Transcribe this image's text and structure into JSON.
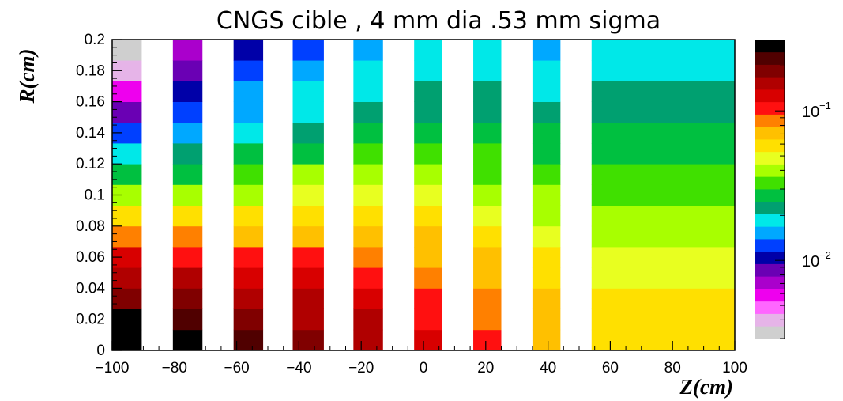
{
  "chart_data": {
    "type": "heatmap",
    "title": "CNGS cible , 4 mm dia .53 mm sigma",
    "xlabel": "Z(cm)",
    "ylabel": "R(cm)",
    "xlim": [
      -100,
      100
    ],
    "ylim": [
      0,
      0.2
    ],
    "x_ticks": [
      "−100",
      "−80",
      "−60",
      "−40",
      "−20",
      "0",
      "20",
      "40",
      "60",
      "80",
      "100"
    ],
    "y_ticks": [
      "0",
      "0.02",
      "0.04",
      "0.06",
      "0.08",
      "0.1",
      "0.12",
      "0.14",
      "0.16",
      "0.18",
      "0.2"
    ],
    "colorbar": {
      "scale": "log",
      "range": [
        0.003,
        0.3
      ],
      "tick_labels": [
        {
          "value": 0.1,
          "base": "10",
          "exponent": "−1"
        },
        {
          "value": 0.01,
          "base": "10",
          "exponent": "−2"
        }
      ],
      "colors": [
        "#cfcfcf",
        "#e6b4e8",
        "#ff66ff",
        "#ee00ee",
        "#aa00cc",
        "#6a00b4",
        "#0000a8",
        "#0040ff",
        "#00a8ff",
        "#00e8e8",
        "#00a070",
        "#00c040",
        "#40e000",
        "#a8ff00",
        "#e8ff20",
        "#ffe000",
        "#ffc000",
        "#ff8000",
        "#ff1010",
        "#d80000",
        "#b00000",
        "#800000",
        "#500000",
        "#000000"
      ]
    },
    "segments": [
      {
        "z_start": -100,
        "z_end": -90.5,
        "r_values": [
          0.3,
          0.25,
          0.2,
          0.16,
          0.12,
          0.08,
          0.055,
          0.04,
          0.03,
          0.02,
          0.012,
          0.008,
          0.006,
          0.004,
          0.003
        ]
      },
      {
        "z_start": -80.5,
        "z_end": -71,
        "r_values": [
          0.28,
          0.23,
          0.19,
          0.15,
          0.11,
          0.08,
          0.055,
          0.04,
          0.03,
          0.022,
          0.016,
          0.012,
          0.01,
          0.008,
          0.007
        ]
      },
      {
        "z_start": -61,
        "z_end": -51.5,
        "r_values": [
          0.22,
          0.19,
          0.16,
          0.13,
          0.1,
          0.075,
          0.055,
          0.042,
          0.033,
          0.026,
          0.02,
          0.016,
          0.014,
          0.012,
          0.011
        ]
      },
      {
        "z_start": -42,
        "z_end": -32,
        "r_values": [
          0.19,
          0.16,
          0.14,
          0.12,
          0.095,
          0.075,
          0.058,
          0.046,
          0.037,
          0.03,
          0.024,
          0.02,
          0.017,
          0.015,
          0.013
        ]
      },
      {
        "z_start": -22.5,
        "z_end": -13,
        "r_values": [
          0.16,
          0.14,
          0.12,
          0.105,
          0.09,
          0.072,
          0.058,
          0.047,
          0.039,
          0.032,
          0.026,
          0.022,
          0.019,
          0.017,
          0.015
        ]
      },
      {
        "z_start": -3,
        "z_end": 6,
        "r_values": [
          0.12,
          0.11,
          0.1,
          0.09,
          0.078,
          0.066,
          0.055,
          0.046,
          0.039,
          0.033,
          0.028,
          0.024,
          0.021,
          0.019,
          0.017
        ]
      },
      {
        "z_start": 16,
        "z_end": 25,
        "r_values": [
          0.1,
          0.092,
          0.085,
          0.076,
          0.066,
          0.057,
          0.049,
          0.042,
          0.036,
          0.031,
          0.027,
          0.023,
          0.021,
          0.019,
          0.017
        ]
      },
      {
        "z_start": 35,
        "z_end": 44,
        "r_values": [
          0.075,
          0.072,
          0.068,
          0.062,
          0.056,
          0.05,
          0.044,
          0.039,
          0.034,
          0.03,
          0.026,
          0.023,
          0.02,
          0.018,
          0.016
        ]
      },
      {
        "z_start": 54,
        "z_end": 100,
        "r_values": [
          0.06,
          0.058,
          0.055,
          0.052,
          0.048,
          0.044,
          0.04,
          0.036,
          0.032,
          0.029,
          0.026,
          0.024,
          0.022,
          0.02,
          0.019
        ]
      }
    ]
  }
}
